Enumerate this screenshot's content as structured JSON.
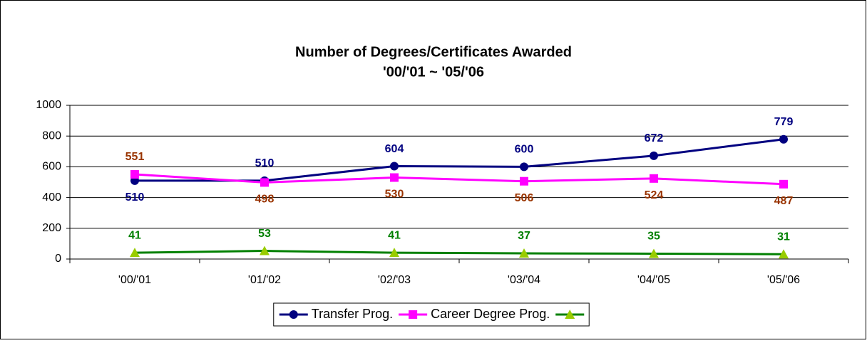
{
  "chart_data": {
    "type": "line",
    "title": "Number of Degrees/Certificates Awarded",
    "subtitle": "'00/'01 ~ '05/'06",
    "categories": [
      "'00/'01",
      "'01/'02",
      "'02/'03",
      "'03/'04",
      "'04/'05",
      "'05/'06"
    ],
    "series": [
      {
        "name": "Transfer Prog.",
        "color": "#000080",
        "marker": "circle",
        "marker_color": "#000080",
        "label_color": "#000080",
        "label_positions": [
          "below",
          "above",
          "above",
          "above",
          "above",
          "above"
        ],
        "values": [
          510,
          510,
          604,
          600,
          672,
          779
        ]
      },
      {
        "name": "Career Degree Prog.",
        "color": "#ff00ff",
        "marker": "square",
        "marker_color": "#ff00ff",
        "label_color": "#993300",
        "label_positions": [
          "above",
          "below",
          "below",
          "below",
          "below",
          "below"
        ],
        "values": [
          551,
          498,
          530,
          506,
          524,
          487
        ]
      },
      {
        "name": null,
        "color": "#008000",
        "marker": "triangle",
        "marker_color": "#99cc00",
        "label_color": "#008000",
        "label_positions": [
          "above",
          "above",
          "above",
          "above",
          "above",
          "above"
        ],
        "values": [
          41,
          53,
          41,
          37,
          35,
          31
        ]
      }
    ],
    "ylim": [
      0,
      1000
    ],
    "yticks": [
      0,
      200,
      400,
      600,
      800,
      1000
    ],
    "grid": true,
    "legend": "bottom"
  }
}
